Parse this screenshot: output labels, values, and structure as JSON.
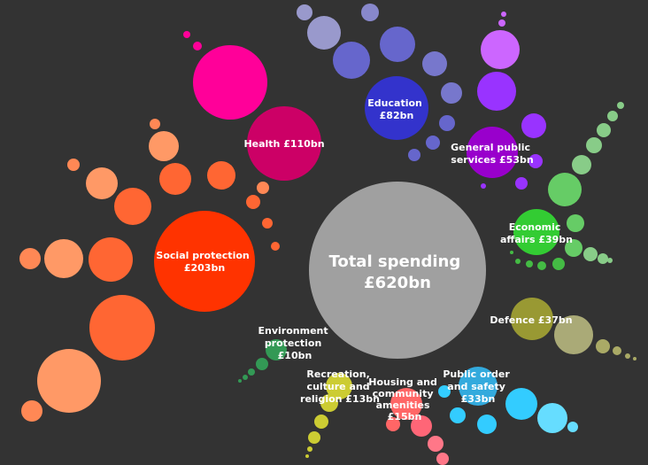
{
  "total": {
    "lines": [
      "Total spending",
      "£620bn"
    ],
    "color": "#a0a0a0"
  },
  "categories": [
    {
      "id": "social-protection",
      "lines": [
        "Social protection",
        "£203bn"
      ],
      "value_bn": 203,
      "color": "#ff3300"
    },
    {
      "id": "health",
      "lines": [
        "Health £110bn"
      ],
      "value_bn": 110,
      "color": "#cc0066"
    },
    {
      "id": "education",
      "lines": [
        "Education",
        "£82bn"
      ],
      "value_bn": 82,
      "color": "#3333cc"
    },
    {
      "id": "general-public-services",
      "lines": [
        "General public",
        "services £53bn"
      ],
      "value_bn": 53,
      "color": "#9900cc"
    },
    {
      "id": "economic-affairs",
      "lines": [
        "Economic",
        "affairs £39bn"
      ],
      "value_bn": 39,
      "color": "#33cc33"
    },
    {
      "id": "defence",
      "lines": [
        "Defence £37bn"
      ],
      "value_bn": 37,
      "color": "#999933"
    },
    {
      "id": "public-order",
      "lines": [
        "Public order",
        "and safety",
        "£33bn"
      ],
      "value_bn": 33,
      "color": "#33aadd"
    },
    {
      "id": "housing",
      "lines": [
        "Housing and",
        "community",
        "amenities",
        "£15bn"
      ],
      "value_bn": 15,
      "color": "#ff6666"
    },
    {
      "id": "recreation",
      "lines": [
        "Recreation,",
        "culture and",
        "religion £13bn"
      ],
      "value_bn": 13,
      "color": "#cccc33"
    },
    {
      "id": "environment",
      "lines": [
        "Environment",
        "protection",
        "£10bn"
      ],
      "value_bn": 10,
      "color": "#339955"
    }
  ]
}
